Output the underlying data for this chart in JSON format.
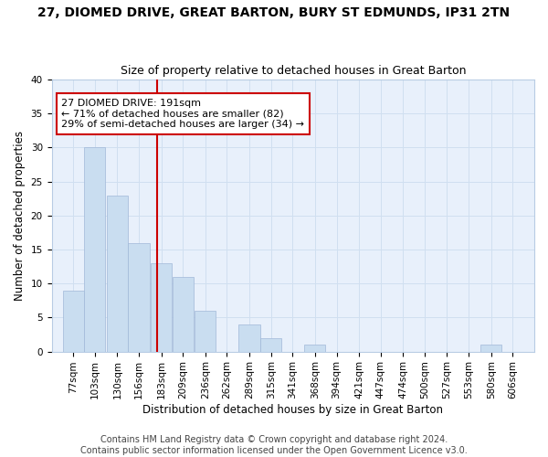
{
  "title": "27, DIOMED DRIVE, GREAT BARTON, BURY ST EDMUNDS, IP31 2TN",
  "subtitle": "Size of property relative to detached houses in Great Barton",
  "xlabel": "Distribution of detached houses by size in Great Barton",
  "ylabel": "Number of detached properties",
  "bins": [
    "77sqm",
    "103sqm",
    "130sqm",
    "156sqm",
    "183sqm",
    "209sqm",
    "236sqm",
    "262sqm",
    "289sqm",
    "315sqm",
    "341sqm",
    "368sqm",
    "394sqm",
    "421sqm",
    "447sqm",
    "474sqm",
    "500sqm",
    "527sqm",
    "553sqm",
    "580sqm",
    "606sqm"
  ],
  "counts": [
    9,
    30,
    23,
    16,
    13,
    11,
    6,
    0,
    4,
    2,
    0,
    1,
    0,
    0,
    0,
    0,
    0,
    0,
    0,
    1,
    0
  ],
  "bin_edges": [
    77,
    103,
    130,
    156,
    183,
    209,
    236,
    262,
    289,
    315,
    341,
    368,
    394,
    421,
    447,
    474,
    500,
    527,
    553,
    580,
    606
  ],
  "bin_width": 26,
  "bar_face_color": "#c9ddf0",
  "bar_edge_color": "#a0b8d8",
  "reference_line_x": 191,
  "reference_line_color": "#cc0000",
  "annotation_text": "27 DIOMED DRIVE: 191sqm\n← 71% of detached houses are smaller (82)\n29% of semi-detached houses are larger (34) →",
  "annotation_box_facecolor": "#ffffff",
  "annotation_box_edgecolor": "#cc0000",
  "ylim": [
    0,
    40
  ],
  "yticks": [
    0,
    5,
    10,
    15,
    20,
    25,
    30,
    35,
    40
  ],
  "xlim_left": 64,
  "xlim_right": 645,
  "grid_color": "#d0dff0",
  "bg_color": "#e8f0fb",
  "footer_line1": "Contains HM Land Registry data © Crown copyright and database right 2024.",
  "footer_line2": "Contains public sector information licensed under the Open Government Licence v3.0.",
  "title_fontsize": 10,
  "subtitle_fontsize": 9,
  "axis_label_fontsize": 8.5,
  "tick_fontsize": 7.5,
  "annotation_fontsize": 8,
  "footer_fontsize": 7
}
